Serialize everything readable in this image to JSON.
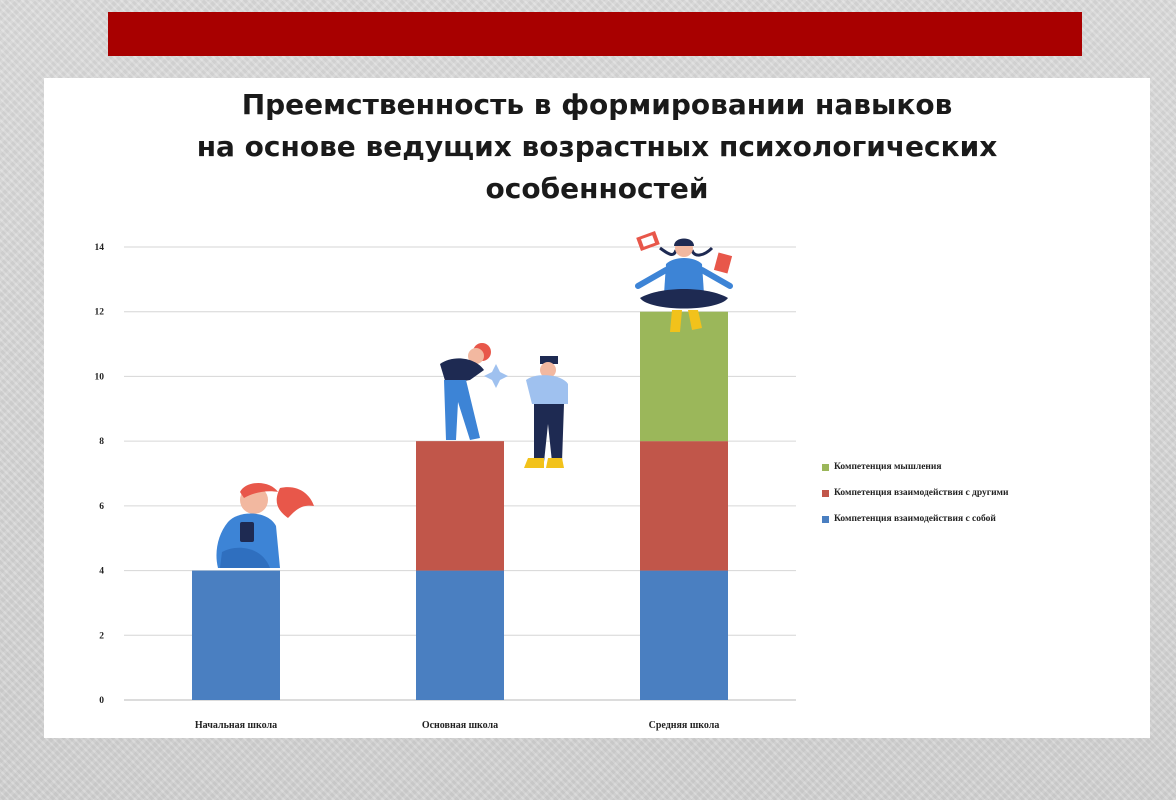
{
  "title": {
    "lines": [
      "Преемственность в формировании навыков",
      "на основе ведущих возрастных психологических",
      "особенностей"
    ]
  },
  "colors": {
    "accent_bar": "#a80000",
    "series_blue": "#4a7fc1",
    "series_red": "#c1564a",
    "series_green": "#9bb75a"
  },
  "chart_data": {
    "type": "bar",
    "stacked": true,
    "categories": [
      "Начальная школа",
      "Основная школа",
      "Средняя школа"
    ],
    "series": [
      {
        "name": "Компетенция взаимодействия с собой",
        "values": [
          4,
          4,
          4
        ],
        "color": "#4a7fc1"
      },
      {
        "name": "Компетенция взаимодействия с другими",
        "values": [
          0,
          4,
          4
        ],
        "color": "#c1564a"
      },
      {
        "name": "Компетенция мышления",
        "values": [
          0,
          0,
          4
        ],
        "color": "#9bb75a"
      }
    ],
    "ylim": [
      0,
      14
    ],
    "yticks": [
      0,
      2,
      4,
      6,
      8,
      10,
      12,
      14
    ],
    "grid": true,
    "legend_position": "right",
    "illustrations": [
      "girl-with-phone-illustration",
      "teacher-and-child-illustration",
      "meditating-girl-illustration"
    ]
  }
}
